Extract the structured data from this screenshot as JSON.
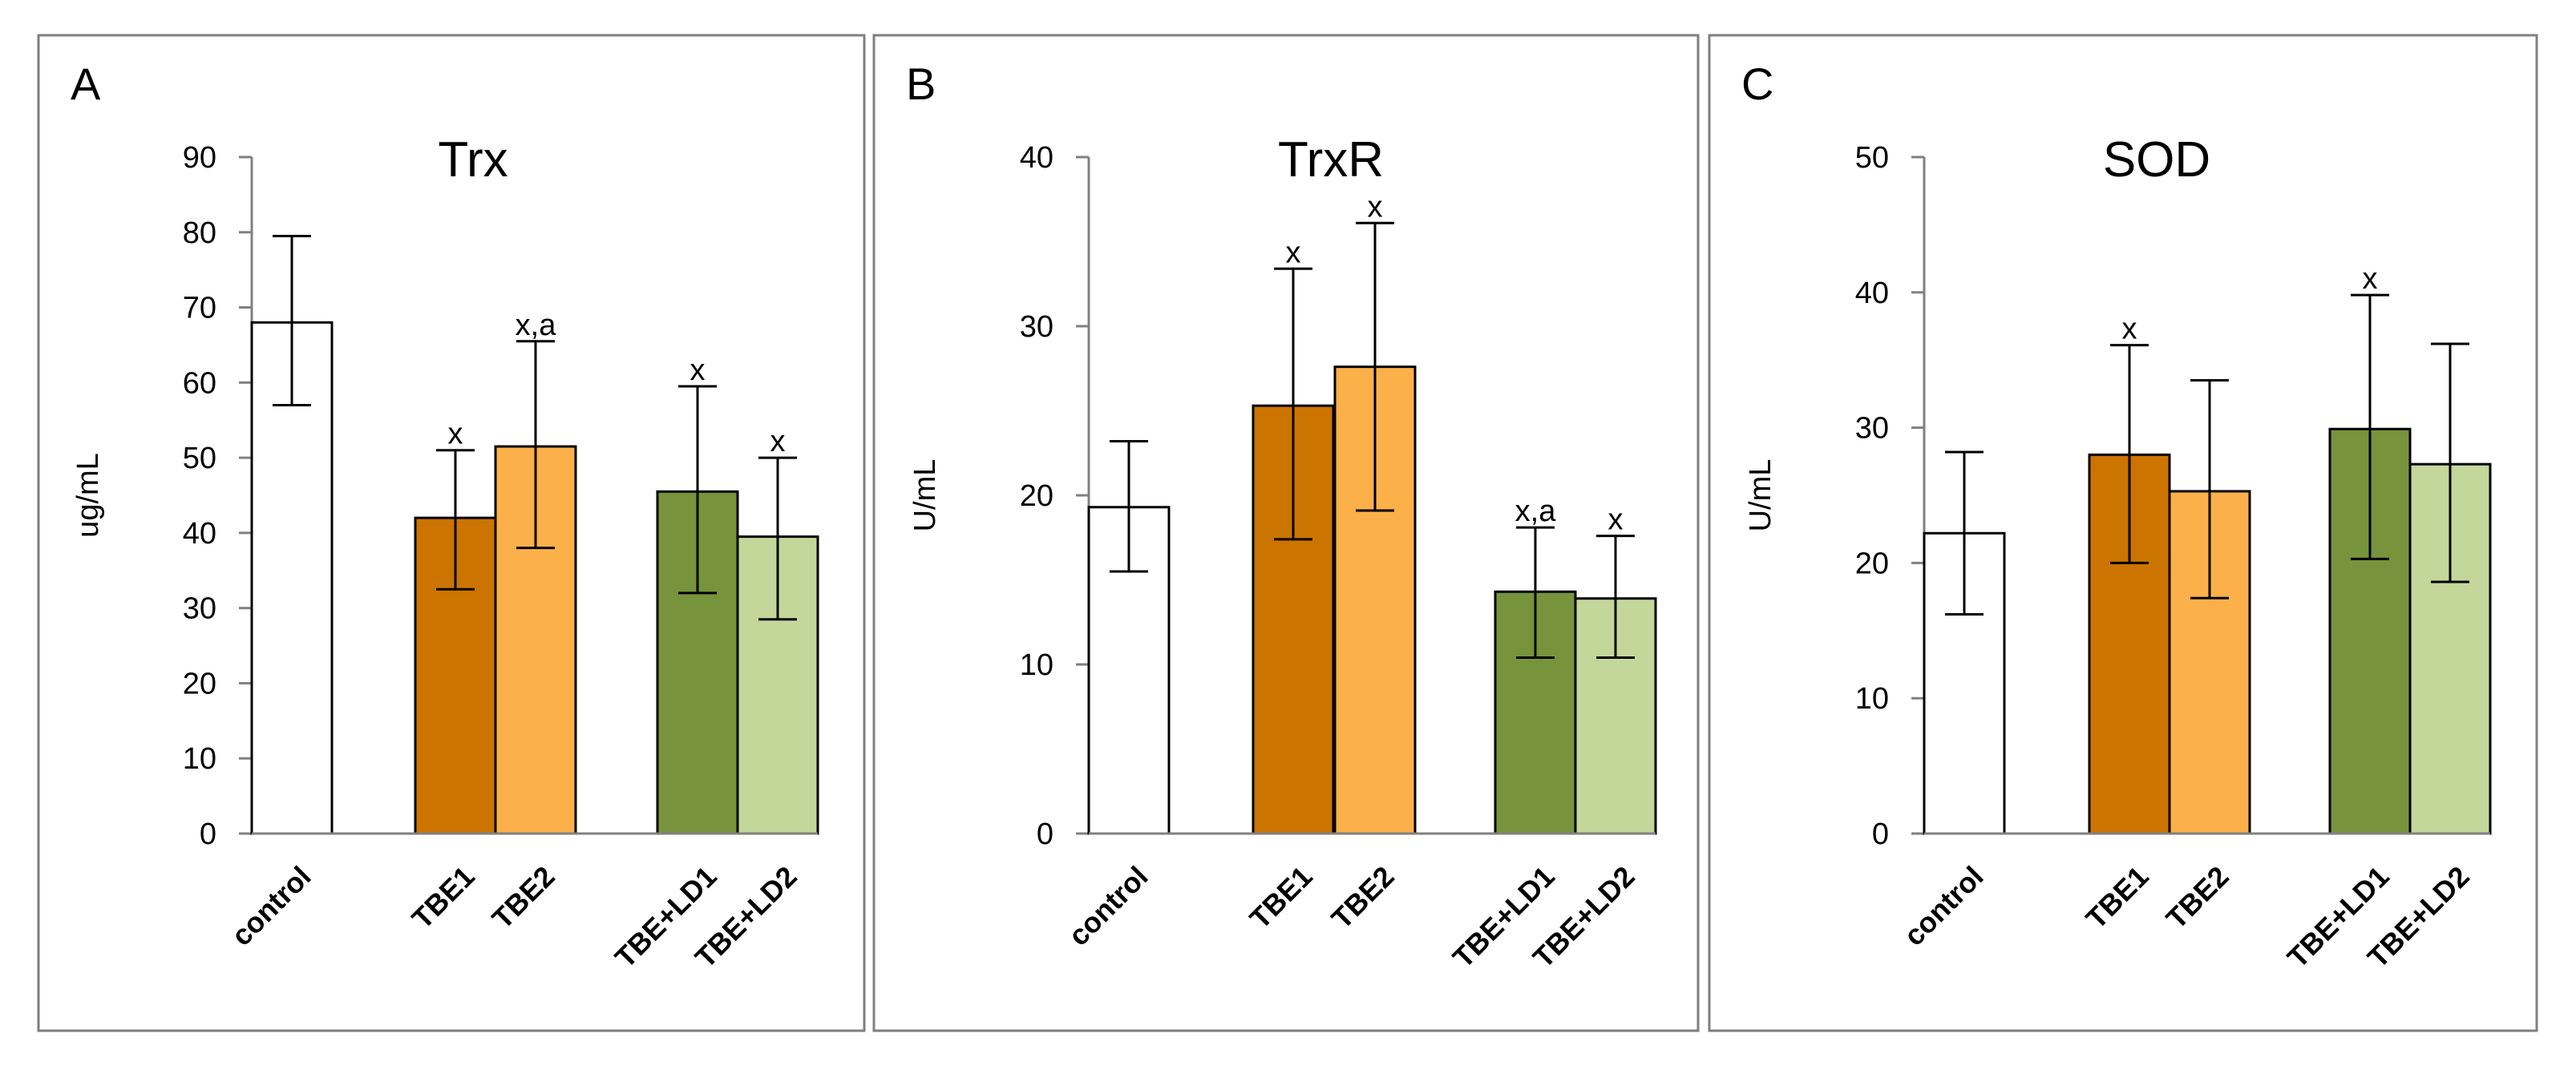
{
  "figure": {
    "bar_colors": [
      "#ffffff",
      "#cc7400",
      "#fbb04a",
      "#77933c",
      "#c4d79b"
    ],
    "edge_color": "#000000",
    "axis_color": "#808080"
  },
  "chart_data": [
    {
      "panel": "A",
      "type": "bar",
      "title": "Trx",
      "xlabel": "",
      "ylabel": "ug/mL",
      "ylim": [
        0,
        90
      ],
      "yticks": [
        0,
        10,
        20,
        30,
        40,
        50,
        60,
        70,
        80,
        90
      ],
      "categories": [
        "control",
        "TBE1",
        "TBE2",
        "TBE+LD1",
        "TBE+LD2"
      ],
      "values": [
        68,
        42,
        51.5,
        45.5,
        39.5
      ],
      "error_upper": [
        79.5,
        51,
        65.5,
        59.5,
        50
      ],
      "error_lower": [
        57,
        32.5,
        38,
        32,
        28.5
      ],
      "annotations": [
        "",
        "x",
        "x,a",
        "x",
        "x"
      ]
    },
    {
      "panel": "B",
      "type": "bar",
      "title": "TrxR",
      "xlabel": "",
      "ylabel": "U/mL",
      "ylim": [
        0,
        40
      ],
      "yticks": [
        0,
        10,
        20,
        30,
        40
      ],
      "categories": [
        "control",
        "TBE1",
        "TBE2",
        "TBE+LD1",
        "TBE+LD2"
      ],
      "values": [
        19.3,
        25.3,
        27.6,
        14.3,
        13.9
      ],
      "error_upper": [
        23.2,
        33.4,
        36.1,
        18.1,
        17.6
      ],
      "error_lower": [
        15.5,
        17.4,
        19.1,
        10.4,
        10.4
      ],
      "annotations": [
        "",
        "x",
        "x",
        "x,a",
        "x"
      ]
    },
    {
      "panel": "C",
      "type": "bar",
      "title": "SOD",
      "xlabel": "",
      "ylabel": "U/mL",
      "ylim": [
        0,
        50
      ],
      "yticks": [
        0,
        10,
        20,
        30,
        40,
        50
      ],
      "categories": [
        "control",
        "TBE1",
        "TBE2",
        "TBE+LD1",
        "TBE+LD2"
      ],
      "values": [
        22.2,
        28,
        25.3,
        29.9,
        27.3
      ],
      "error_upper": [
        28.2,
        36.1,
        33.5,
        39.8,
        36.2
      ],
      "error_lower": [
        16.2,
        20,
        17.4,
        20.3,
        18.6
      ],
      "annotations": [
        "",
        "x",
        "",
        "x",
        ""
      ]
    }
  ]
}
